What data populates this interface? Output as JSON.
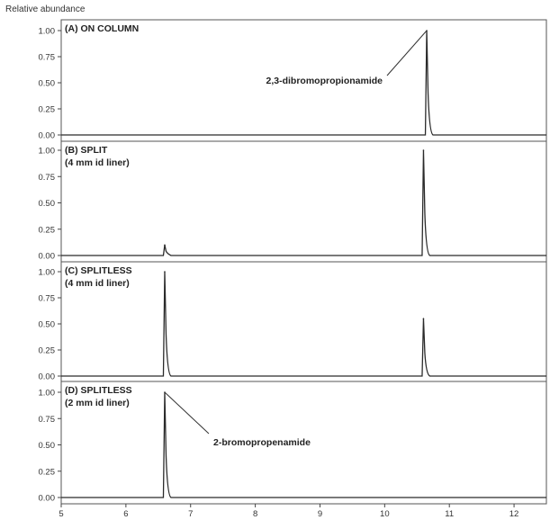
{
  "chart_data": {
    "type": "line",
    "ylabel": "Relative abundance",
    "xlabel": "",
    "xlim": [
      5,
      12.5
    ],
    "ylim": [
      0,
      1.0
    ],
    "x_ticks": [
      5,
      6,
      7,
      8,
      9,
      10,
      11,
      12
    ],
    "y_ticks": [
      0.0,
      0.25,
      0.5,
      0.75,
      1.0
    ],
    "y_tick_labels": [
      "0.00",
      "0.25",
      "0.50",
      "0.75",
      "1.00"
    ],
    "x_ticks_shown_on": "bottom panel only",
    "grid": false,
    "line_color": "#2a2a2a",
    "panels": [
      {
        "title": "(A) ON COLUMN",
        "subtitle": "",
        "peaks": [
          {
            "x": 10.65,
            "height": 1.0
          }
        ],
        "annotation": {
          "text": "2,3-dibromopropionamide",
          "x": 10.65,
          "y": 1.0
        }
      },
      {
        "title": "(B) SPLIT",
        "subtitle": "(4 mm id liner)",
        "peaks": [
          {
            "x": 6.6,
            "height": 0.1
          },
          {
            "x": 10.6,
            "height": 1.0
          }
        ],
        "annotation": null
      },
      {
        "title": "(C) SPLITLESS",
        "subtitle": "(4 mm id liner)",
        "peaks": [
          {
            "x": 6.6,
            "height": 1.0
          },
          {
            "x": 10.6,
            "height": 0.55
          }
        ],
        "annotation": null
      },
      {
        "title": "(D) SPLITLESS",
        "subtitle": "(2 mm id liner)",
        "peaks": [
          {
            "x": 6.6,
            "height": 1.0
          }
        ],
        "annotation": {
          "text": "2-bromopropenamide",
          "x": 6.6,
          "y": 1.0
        }
      }
    ]
  }
}
